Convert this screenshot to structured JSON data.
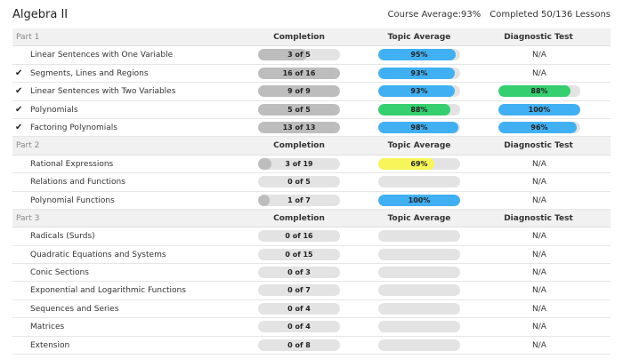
{
  "header": {
    "title": "Algebra II",
    "course_average": "Course Average:93%",
    "completed": "Completed 50/136 Lessons"
  },
  "columns": {
    "completion": "Completion",
    "topic_average": "Topic Average",
    "diagnostic_test": "Diagnostic Test"
  },
  "colors": {
    "blue": "#41b0f2",
    "green": "#36cf70",
    "yellow": "#f6f65a",
    "gray_fill": "#bdbdbd",
    "track": "#e3e3e3"
  },
  "parts": [
    {
      "label": "Part 1",
      "lessons": [
        {
          "name": "Linear Sentences with One Variable",
          "checked": false,
          "completion": {
            "text": "3 of 5",
            "fraction": 0.6
          },
          "topic": {
            "text": "95%",
            "fraction": 0.95,
            "color": "blue"
          },
          "diagnostic": {
            "text": "N/A"
          }
        },
        {
          "name": "Segments, Lines and Regions",
          "checked": true,
          "completion": {
            "text": "16 of 16",
            "fraction": 1.0
          },
          "topic": {
            "text": "93%",
            "fraction": 0.93,
            "color": "blue"
          },
          "diagnostic": {
            "text": "N/A"
          }
        },
        {
          "name": "Linear Sentences with Two Variables",
          "checked": true,
          "completion": {
            "text": "9 of 9",
            "fraction": 1.0
          },
          "topic": {
            "text": "93%",
            "fraction": 0.93,
            "color": "blue"
          },
          "diagnostic": {
            "text": "88%",
            "fraction": 0.88,
            "color": "green"
          }
        },
        {
          "name": "Polynomials",
          "checked": true,
          "completion": {
            "text": "5 of 5",
            "fraction": 1.0
          },
          "topic": {
            "text": "88%",
            "fraction": 0.88,
            "color": "green"
          },
          "diagnostic": {
            "text": "100%",
            "fraction": 1.0,
            "color": "blue"
          }
        },
        {
          "name": "Factoring Polynomials",
          "checked": true,
          "completion": {
            "text": "13 of 13",
            "fraction": 1.0
          },
          "topic": {
            "text": "98%",
            "fraction": 0.98,
            "color": "blue"
          },
          "diagnostic": {
            "text": "96%",
            "fraction": 0.96,
            "color": "blue"
          }
        }
      ]
    },
    {
      "label": "Part 2",
      "lessons": [
        {
          "name": "Rational Expressions",
          "checked": false,
          "completion": {
            "text": "3 of 19",
            "fraction": 0.16
          },
          "topic": {
            "text": "69%",
            "fraction": 0.69,
            "color": "yellow"
          },
          "diagnostic": {
            "text": "N/A"
          }
        },
        {
          "name": "Relations and Functions",
          "checked": false,
          "completion": {
            "text": "0 of 5",
            "fraction": 0
          },
          "topic": {
            "text": "",
            "fraction": 0,
            "color": "blue"
          },
          "diagnostic": {
            "text": "N/A"
          }
        },
        {
          "name": "Polynomial Functions",
          "checked": false,
          "completion": {
            "text": "1 of 7",
            "fraction": 0.14
          },
          "topic": {
            "text": "100%",
            "fraction": 1.0,
            "color": "blue"
          },
          "diagnostic": {
            "text": "N/A"
          }
        }
      ]
    },
    {
      "label": "Part 3",
      "lessons": [
        {
          "name": "Radicals (Surds)",
          "checked": false,
          "completion": {
            "text": "0 of 16",
            "fraction": 0
          },
          "topic": {
            "text": "",
            "fraction": 0,
            "color": "blue"
          },
          "diagnostic": {
            "text": "N/A"
          }
        },
        {
          "name": "Quadratic Equations and Systems",
          "checked": false,
          "completion": {
            "text": "0 of 15",
            "fraction": 0
          },
          "topic": {
            "text": "",
            "fraction": 0,
            "color": "blue"
          },
          "diagnostic": {
            "text": "N/A"
          }
        },
        {
          "name": "Conic Sections",
          "checked": false,
          "completion": {
            "text": "0 of 3",
            "fraction": 0
          },
          "topic": {
            "text": "",
            "fraction": 0,
            "color": "blue"
          },
          "diagnostic": {
            "text": "N/A"
          }
        },
        {
          "name": "Exponential and Logarithmic Functions",
          "checked": false,
          "completion": {
            "text": "0 of 7",
            "fraction": 0
          },
          "topic": {
            "text": "",
            "fraction": 0,
            "color": "blue"
          },
          "diagnostic": {
            "text": "N/A"
          }
        },
        {
          "name": "Sequences and Series",
          "checked": false,
          "completion": {
            "text": "0 of 4",
            "fraction": 0
          },
          "topic": {
            "text": "",
            "fraction": 0,
            "color": "blue"
          },
          "diagnostic": {
            "text": "N/A"
          }
        },
        {
          "name": "Matrices",
          "checked": false,
          "completion": {
            "text": "0 of 4",
            "fraction": 0
          },
          "topic": {
            "text": "",
            "fraction": 0,
            "color": "blue"
          },
          "diagnostic": {
            "text": "N/A"
          }
        },
        {
          "name": "Extension",
          "checked": false,
          "completion": {
            "text": "0 of 8",
            "fraction": 0
          },
          "topic": {
            "text": "",
            "fraction": 0,
            "color": "blue"
          },
          "diagnostic": {
            "text": "N/A"
          }
        }
      ]
    }
  ]
}
